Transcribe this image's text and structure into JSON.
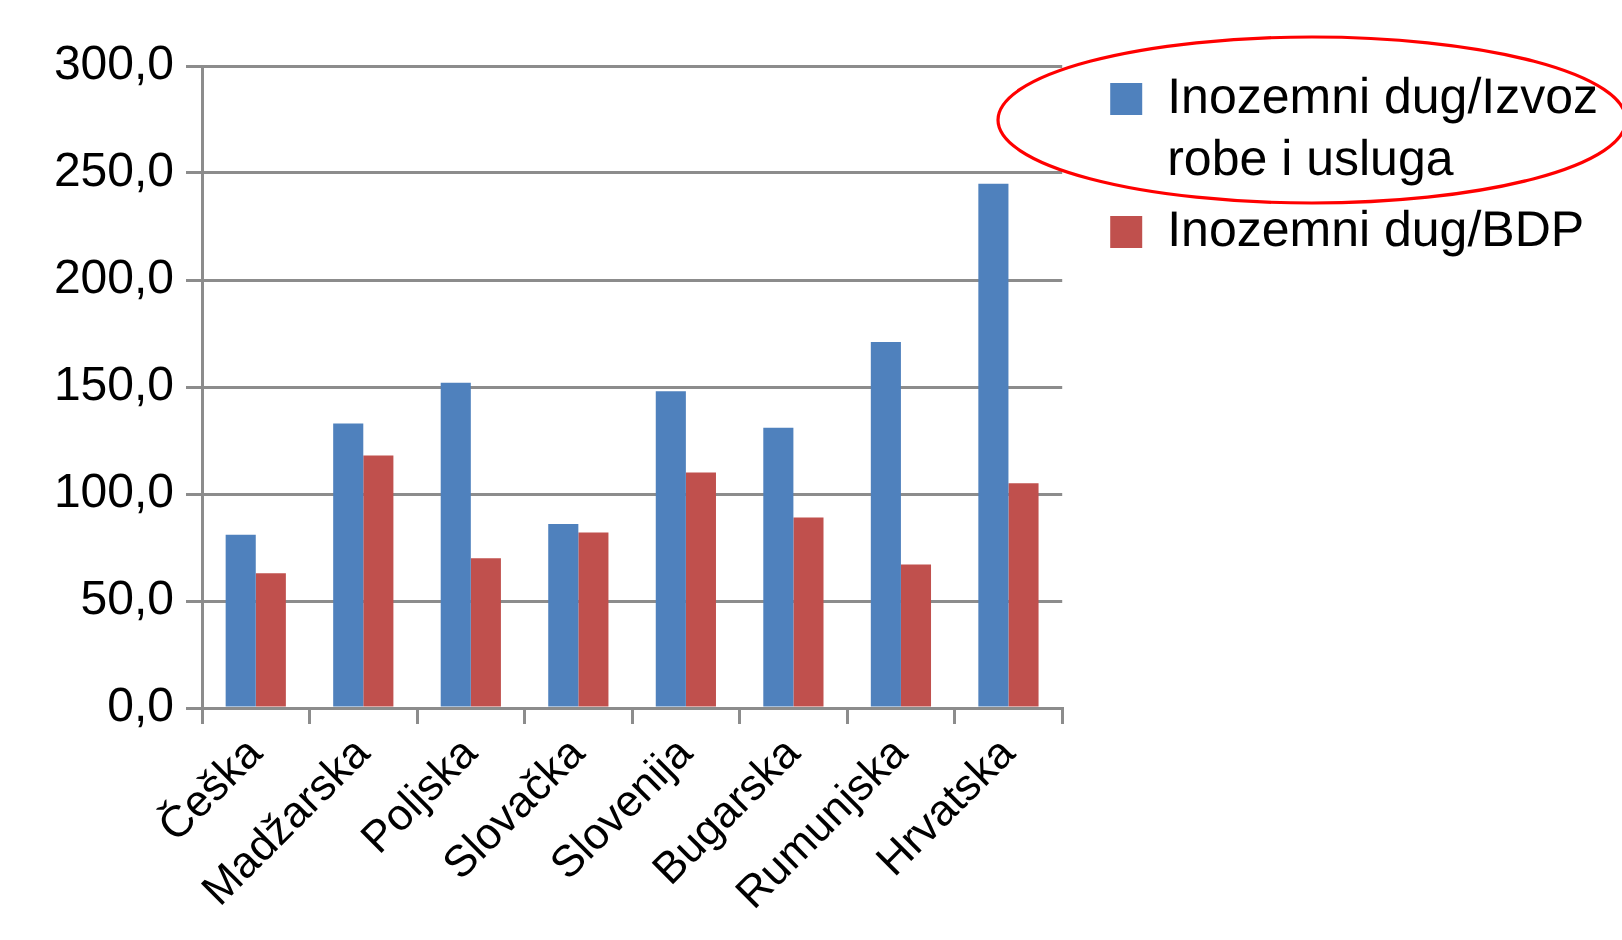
{
  "chart_data": {
    "type": "bar",
    "categories": [
      "Češka",
      "Madžarska",
      "Poljska",
      "Slovačka",
      "Slovenija",
      "Bugarska",
      "Rumunjska",
      "Hrvatska"
    ],
    "series": [
      {
        "name": "Inozemni dug/Izvoz robe i usluga",
        "color": "#4f81bd",
        "values": [
          81,
          133,
          152,
          86,
          148,
          131,
          171,
          245
        ]
      },
      {
        "name": "Inozemni dug/BDP",
        "color": "#c0504d",
        "values": [
          63,
          118,
          70,
          82,
          110,
          89,
          67,
          105
        ]
      }
    ],
    "ylim": [
      0,
      300
    ],
    "yticks": [
      {
        "value": 0,
        "label": "0,0"
      },
      {
        "value": 50,
        "label": "50,0"
      },
      {
        "value": 100,
        "label": "100,0"
      },
      {
        "value": 150,
        "label": "150,0"
      },
      {
        "value": 200,
        "label": "200,0"
      },
      {
        "value": 250,
        "label": "250,0"
      },
      {
        "value": 300,
        "label": "300,0"
      }
    ],
    "grid": "y",
    "legend": "top right"
  }
}
